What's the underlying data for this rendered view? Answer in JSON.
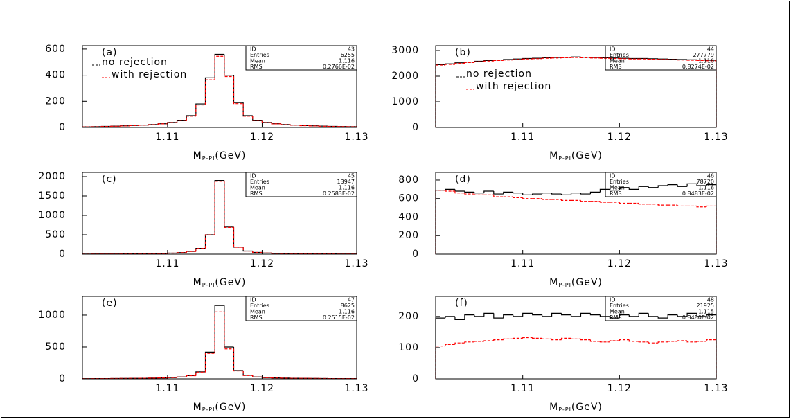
{
  "chart_data": [
    {
      "type": "histogram",
      "label": "(a)",
      "legend": "upper left",
      "x_label": "M",
      "x_label_sub": "P-PI",
      "x_label_unit": "(GeV)",
      "stats": [
        [
          "ID",
          43
        ],
        [
          "Entries",
          6255
        ],
        [
          "Mean",
          1.116
        ],
        [
          "RMS",
          "0.2766E-02"
        ]
      ],
      "bins": [
        1.101,
        1.102,
        1.103,
        1.104,
        1.105,
        1.106,
        1.107,
        1.108,
        1.109,
        1.11,
        1.111,
        1.112,
        1.113,
        1.114,
        1.115,
        1.116,
        1.117,
        1.118,
        1.119,
        1.12,
        1.121,
        1.122,
        1.123,
        1.124,
        1.125,
        1.126,
        1.127,
        1.128,
        1.129,
        1.13
      ],
      "xlim": [
        1.101,
        1.13
      ],
      "xticks": [
        1.11,
        1.12,
        1.13
      ],
      "ylim": [
        0,
        626
      ],
      "yticks": [
        0,
        200,
        400,
        600
      ],
      "series": [
        {
          "name": "no rejection",
          "color": "#000000",
          "values": [
            5,
            6,
            8,
            10,
            12,
            15,
            18,
            22,
            28,
            38,
            55,
            90,
            180,
            380,
            560,
            400,
            190,
            90,
            55,
            38,
            28,
            22,
            18,
            14,
            12,
            10,
            8,
            7,
            6
          ]
        },
        {
          "name": "with rejection",
          "color": "#ff0000",
          "dashed": true,
          "values": [
            4,
            5,
            7,
            9,
            11,
            14,
            17,
            21,
            27,
            36,
            52,
            86,
            172,
            365,
            545,
            390,
            182,
            86,
            52,
            36,
            27,
            21,
            17,
            13,
            11,
            9,
            7,
            6,
            5
          ]
        }
      ]
    },
    {
      "type": "histogram",
      "label": "(b)",
      "legend": "center left",
      "x_label": "M",
      "x_label_sub": "P-PI",
      "x_label_unit": "(GeV)",
      "stats": [
        [
          "ID",
          44
        ],
        [
          "Entries",
          277779
        ],
        [
          "Mean",
          1.116
        ],
        [
          "RMS",
          "0.8274E-02"
        ]
      ],
      "bins": [
        1.101,
        1.102,
        1.103,
        1.104,
        1.105,
        1.106,
        1.107,
        1.108,
        1.109,
        1.11,
        1.111,
        1.112,
        1.113,
        1.114,
        1.115,
        1.116,
        1.117,
        1.118,
        1.119,
        1.12,
        1.121,
        1.122,
        1.123,
        1.124,
        1.125,
        1.126,
        1.127,
        1.128,
        1.129,
        1.13
      ],
      "xlim": [
        1.101,
        1.13
      ],
      "xticks": [
        1.11,
        1.12,
        1.13
      ],
      "ylim": [
        0,
        3189
      ],
      "yticks": [
        0,
        1000,
        2000,
        3000
      ],
      "series": [
        {
          "name": "no rejection",
          "color": "#000000",
          "values": [
            2450,
            2480,
            2520,
            2550,
            2580,
            2610,
            2630,
            2650,
            2670,
            2690,
            2700,
            2720,
            2730,
            2740,
            2750,
            2740,
            2730,
            2720,
            2710,
            2700,
            2690,
            2690,
            2680,
            2670,
            2660,
            2650,
            2640,
            2630,
            2620
          ]
        },
        {
          "name": "with rejection",
          "color": "#ff0000",
          "dashed": true,
          "values": [
            2430,
            2460,
            2500,
            2530,
            2560,
            2590,
            2610,
            2630,
            2650,
            2670,
            2680,
            2700,
            2710,
            2720,
            2730,
            2720,
            2710,
            2700,
            2690,
            2680,
            2670,
            2670,
            2660,
            2650,
            2640,
            2630,
            2620,
            2610,
            2600
          ]
        }
      ]
    },
    {
      "type": "histogram",
      "label": "(c)",
      "x_label": "M",
      "x_label_sub": "P-PI",
      "x_label_unit": "(GeV)",
      "stats": [
        [
          "ID",
          45
        ],
        [
          "Entries",
          13947
        ],
        [
          "Mean",
          1.116
        ],
        [
          "RMS",
          "0.2583E-02"
        ]
      ],
      "bins": [
        1.101,
        1.102,
        1.103,
        1.104,
        1.105,
        1.106,
        1.107,
        1.108,
        1.109,
        1.11,
        1.111,
        1.112,
        1.113,
        1.114,
        1.115,
        1.116,
        1.117,
        1.118,
        1.119,
        1.12,
        1.121,
        1.122,
        1.123,
        1.124,
        1.125,
        1.126,
        1.127,
        1.128,
        1.129,
        1.13
      ],
      "xlim": [
        1.101,
        1.13
      ],
      "xticks": [
        1.11,
        1.12,
        1.13
      ],
      "ylim": [
        0,
        2107
      ],
      "yticks": [
        0,
        500,
        1000,
        1500,
        2000
      ],
      "series": [
        {
          "color": "#000000",
          "values": [
            3,
            4,
            5,
            6,
            8,
            10,
            12,
            15,
            20,
            28,
            40,
            70,
            150,
            500,
            1900,
            700,
            180,
            80,
            45,
            30,
            22,
            17,
            14,
            12,
            10,
            8,
            7,
            6,
            5
          ]
        },
        {
          "color": "#ff0000",
          "dashed": true,
          "values": [
            3,
            4,
            5,
            6,
            8,
            10,
            12,
            15,
            20,
            27,
            39,
            68,
            148,
            495,
            1880,
            690,
            178,
            79,
            44,
            29,
            21,
            16,
            13,
            11,
            9,
            8,
            7,
            6,
            5
          ]
        }
      ]
    },
    {
      "type": "histogram",
      "label": "(d)",
      "x_label": "M",
      "x_label_sub": "P-PI",
      "x_label_unit": "(GeV)",
      "stats": [
        [
          "ID",
          46
        ],
        [
          "Entries",
          78720
        ],
        [
          "Mean",
          1.116
        ],
        [
          "RMS",
          "0.8483E-02"
        ]
      ],
      "bins": [
        1.101,
        1.102,
        1.103,
        1.104,
        1.105,
        1.106,
        1.107,
        1.108,
        1.109,
        1.11,
        1.111,
        1.112,
        1.113,
        1.114,
        1.115,
        1.116,
        1.117,
        1.118,
        1.119,
        1.12,
        1.121,
        1.122,
        1.123,
        1.124,
        1.125,
        1.126,
        1.127,
        1.128,
        1.129,
        1.13
      ],
      "xlim": [
        1.101,
        1.13
      ],
      "xticks": [
        1.11,
        1.12,
        1.13
      ],
      "ylim": [
        0,
        882
      ],
      "yticks": [
        0,
        200,
        400,
        600,
        800
      ],
      "series": [
        {
          "color": "#000000",
          "values": [
            690,
            700,
            680,
            670,
            660,
            680,
            650,
            670,
            660,
            640,
            650,
            660,
            650,
            640,
            660,
            650,
            670,
            700,
            690,
            720,
            700,
            730,
            720,
            740,
            750,
            730,
            760,
            740,
            750
          ]
        },
        {
          "color": "#ff0000",
          "dashed": true,
          "values": [
            690,
            680,
            660,
            650,
            640,
            640,
            620,
            620,
            610,
            600,
            600,
            590,
            590,
            580,
            580,
            570,
            570,
            560,
            560,
            550,
            550,
            540,
            540,
            530,
            530,
            520,
            520,
            510,
            520
          ]
        }
      ]
    },
    {
      "type": "histogram",
      "label": "(e)",
      "x_label": "M",
      "x_label_sub": "P-PI",
      "x_label_unit": "(GeV)",
      "stats": [
        [
          "ID",
          47
        ],
        [
          "Entries",
          8625
        ],
        [
          "Mean",
          1.116
        ],
        [
          "RMS",
          "0.2515E-02"
        ]
      ],
      "bins": [
        1.101,
        1.102,
        1.103,
        1.104,
        1.105,
        1.106,
        1.107,
        1.108,
        1.109,
        1.11,
        1.111,
        1.112,
        1.113,
        1.114,
        1.115,
        1.116,
        1.117,
        1.118,
        1.119,
        1.12,
        1.121,
        1.122,
        1.123,
        1.124,
        1.125,
        1.126,
        1.127,
        1.128,
        1.129,
        1.13
      ],
      "xlim": [
        1.101,
        1.13
      ],
      "xticks": [
        1.11,
        1.12,
        1.13
      ],
      "ylim": [
        0,
        1293
      ],
      "yticks": [
        0,
        500,
        1000
      ],
      "series": [
        {
          "color": "#000000",
          "values": [
            3,
            4,
            5,
            6,
            7,
            8,
            10,
            12,
            15,
            20,
            30,
            50,
            110,
            420,
            1150,
            500,
            130,
            55,
            30,
            20,
            15,
            12,
            10,
            8,
            7,
            6,
            5,
            4,
            4
          ]
        },
        {
          "color": "#ff0000",
          "dashed": true,
          "values": [
            3,
            4,
            5,
            6,
            7,
            8,
            10,
            12,
            15,
            20,
            29,
            48,
            105,
            400,
            1050,
            470,
            125,
            52,
            29,
            19,
            14,
            11,
            9,
            8,
            7,
            6,
            5,
            4,
            4
          ]
        }
      ]
    },
    {
      "type": "histogram",
      "label": "(f)",
      "x_label": "M",
      "x_label_sub": "P-PI",
      "x_label_unit": "(GeV)",
      "stats": [
        [
          "ID",
          48
        ],
        [
          "Entries",
          21925
        ],
        [
          "Mean",
          1.115
        ],
        [
          "RMS",
          "0.8480E-02"
        ]
      ],
      "bins": [
        1.101,
        1.102,
        1.103,
        1.104,
        1.105,
        1.106,
        1.107,
        1.108,
        1.109,
        1.11,
        1.111,
        1.112,
        1.113,
        1.114,
        1.115,
        1.116,
        1.117,
        1.118,
        1.119,
        1.12,
        1.121,
        1.122,
        1.123,
        1.124,
        1.125,
        1.126,
        1.127,
        1.128,
        1.129,
        1.13
      ],
      "xlim": [
        1.101,
        1.13
      ],
      "xticks": [
        1.11,
        1.12,
        1.13
      ],
      "ylim": [
        0,
        264
      ],
      "yticks": [
        0,
        100,
        200
      ],
      "series": [
        {
          "color": "#000000",
          "values": [
            195,
            200,
            190,
            205,
            200,
            210,
            195,
            205,
            200,
            210,
            205,
            200,
            210,
            205,
            200,
            210,
            205,
            200,
            195,
            205,
            200,
            210,
            200,
            195,
            205,
            200,
            210,
            200,
            205
          ]
        },
        {
          "color": "#ff0000",
          "dashed": true,
          "values": [
            105,
            110,
            115,
            118,
            120,
            122,
            125,
            128,
            130,
            132,
            130,
            128,
            125,
            130,
            128,
            125,
            120,
            118,
            122,
            125,
            120,
            118,
            115,
            118,
            120,
            122,
            118,
            120,
            125
          ]
        }
      ]
    }
  ]
}
